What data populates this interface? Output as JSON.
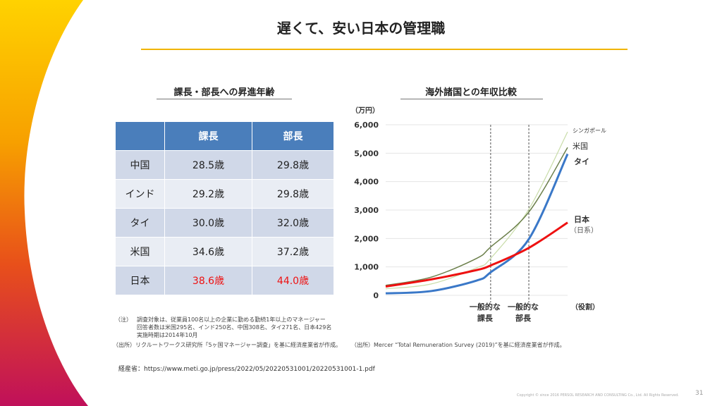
{
  "title": "遅くて、安い日本の管理職",
  "left": {
    "subtitle": "課長・部長への昇進年齢",
    "headers": [
      "",
      "課長",
      "部長"
    ],
    "rows": [
      {
        "country": "中国",
        "kacho": "28.5歳",
        "bucho": "29.8歳"
      },
      {
        "country": "インド",
        "kacho": "29.2歳",
        "bucho": "29.8歳"
      },
      {
        "country": "タイ",
        "kacho": "30.0歳",
        "bucho": "32.0歳"
      },
      {
        "country": "米国",
        "kacho": "34.6歳",
        "bucho": "37.2歳"
      },
      {
        "country": "日本",
        "kacho": "38.6歳",
        "bucho": "44.0歳",
        "highlight": "#ee1111"
      }
    ],
    "note_label": "（注）",
    "note_lines": [
      "調査対象は、従業員100名以上の企業に勤める勤続1年以上のマネージャー",
      "回答者数は米国295名、インド250名、中国308名、タイ271名、日本429名",
      "実施時期は2014年10月"
    ],
    "source": "（出所）リクルートワークス研究所「5ヶ国マネージャー調査」を基に経済産業省が作成。"
  },
  "right": {
    "subtitle": "海外諸国との年収比較",
    "source": "（出所）Mercer “Total Remuneration Survey (2019)”を基に経済産業省が作成。"
  },
  "chart_data": {
    "type": "line",
    "ylabel": "（万円）",
    "xlabel": "（役割）",
    "ylim": [
      0,
      6000
    ],
    "yticks": [
      "0",
      "1,000",
      "2,000",
      "3,000",
      "4,000",
      "5,000",
      "6,000"
    ],
    "xlim": [
      0,
      100
    ],
    "grid": true,
    "markers": [
      {
        "x": 57.7,
        "label": [
          "一般的な",
          "課長"
        ]
      },
      {
        "x": 78.7,
        "label": [
          "一般的な",
          "部長"
        ]
      }
    ],
    "x": [
      0,
      25,
      50,
      57.7,
      78.7,
      100
    ],
    "series": [
      {
        "name": "シンガポール",
        "color": "#c8dca8",
        "values": [
          230,
          400,
          970,
          1300,
          3030,
          5750
        ]
      },
      {
        "name": "米国",
        "color": "#6b7f4a",
        "values": [
          350,
          640,
          1300,
          1700,
          2930,
          5200
        ]
      },
      {
        "name": "タイ",
        "color": "#3a78c8",
        "values": [
          70,
          150,
          520,
          810,
          1980,
          4970
        ]
      },
      {
        "name": "日本",
        "sublabel": "（日系）",
        "color": "#ee1111",
        "values": [
          310,
          560,
          890,
          1050,
          1670,
          2560
        ]
      }
    ]
  },
  "url_line": "経産省：https://www.meti.go.jp/press/2022/05/20220531001/20220531001-1.pdf",
  "copyright": "Copyright © since 2016 PERSOL RESEARCH AND CONSULTING Co., Ltd. All Rights Reserved.",
  "page_number": "31",
  "accent": "#f0b400"
}
